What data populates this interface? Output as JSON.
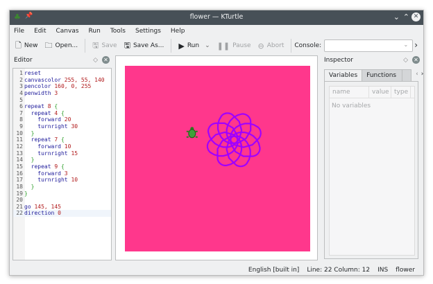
{
  "window": {
    "title": "flower — KTurtle"
  },
  "menu": [
    "File",
    "Edit",
    "Canvas",
    "Run",
    "Tools",
    "Settings",
    "Help"
  ],
  "toolbar": {
    "new": "New",
    "open": "Open...",
    "save": "Save",
    "save_as": "Save As...",
    "run": "Run",
    "pause": "Pause",
    "abort": "Abort",
    "console_label": "Console:",
    "console_value": ""
  },
  "editor": {
    "title": "Editor",
    "lines": [
      [
        [
          "kw",
          "reset"
        ]
      ],
      [
        [
          "kw",
          "canvascolor "
        ],
        [
          "num",
          "255, 55, 140"
        ]
      ],
      [
        [
          "kw",
          "pencolor "
        ],
        [
          "num",
          "160, 0, 255"
        ]
      ],
      [
        [
          "kw",
          "penwidth "
        ],
        [
          "num",
          "3"
        ]
      ],
      [],
      [
        [
          "kw",
          "repeat "
        ],
        [
          "num",
          "8 "
        ],
        [
          "br",
          "{"
        ]
      ],
      [
        [
          "kw",
          "  repeat "
        ],
        [
          "num",
          "4 "
        ],
        [
          "br",
          "{"
        ]
      ],
      [
        [
          "kw",
          "    forward "
        ],
        [
          "num",
          "20"
        ]
      ],
      [
        [
          "kw",
          "    turnright "
        ],
        [
          "num",
          "30"
        ]
      ],
      [
        [
          "br",
          "  }"
        ]
      ],
      [
        [
          "kw",
          "  repeat "
        ],
        [
          "num",
          "7 "
        ],
        [
          "br",
          "{"
        ]
      ],
      [
        [
          "kw",
          "    forward "
        ],
        [
          "num",
          "10"
        ]
      ],
      [
        [
          "kw",
          "    turnright "
        ],
        [
          "num",
          "15"
        ]
      ],
      [
        [
          "br",
          "  }"
        ]
      ],
      [
        [
          "kw",
          "  repeat "
        ],
        [
          "num",
          "9 "
        ],
        [
          "br",
          "{"
        ]
      ],
      [
        [
          "kw",
          "    forward "
        ],
        [
          "num",
          "3"
        ]
      ],
      [
        [
          "kw",
          "    turnright "
        ],
        [
          "num",
          "10"
        ]
      ],
      [
        [
          "br",
          "  }"
        ]
      ],
      [
        [
          "br",
          "}"
        ]
      ],
      [],
      [
        [
          "kw",
          "go "
        ],
        [
          "num",
          "145, 145"
        ]
      ],
      [
        [
          "kw",
          "direction "
        ],
        [
          "num",
          "0"
        ]
      ]
    ],
    "current_line": 22
  },
  "canvas": {
    "background": "#ff378c",
    "pen": "#a000ff"
  },
  "inspector": {
    "title": "Inspector",
    "tabs": [
      "Variables",
      "Functions"
    ],
    "columns": [
      "name",
      "value",
      "type"
    ],
    "empty": "No variables"
  },
  "status": {
    "language": "English [built in]",
    "position": "Line: 22 Column: 12",
    "mode": "INS",
    "file": "flower"
  }
}
